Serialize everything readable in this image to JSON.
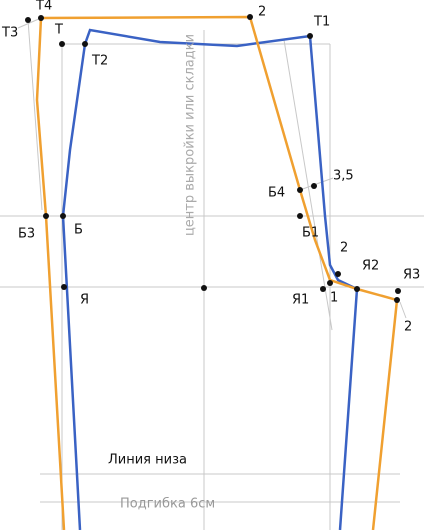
{
  "labels": [
    "Т4",
    "Т3",
    "Т",
    "Т2",
    "2",
    "Т1",
    "3,5",
    "Б4",
    "Б3",
    "Б",
    "Б1",
    "2",
    "Я2",
    "Я3",
    "Я",
    "Я1",
    "1",
    "2"
  ],
  "center_line": "центр выкройки или складки",
  "hem_line": "Линия низа",
  "hem_allowance": "Подгибка 6см"
}
